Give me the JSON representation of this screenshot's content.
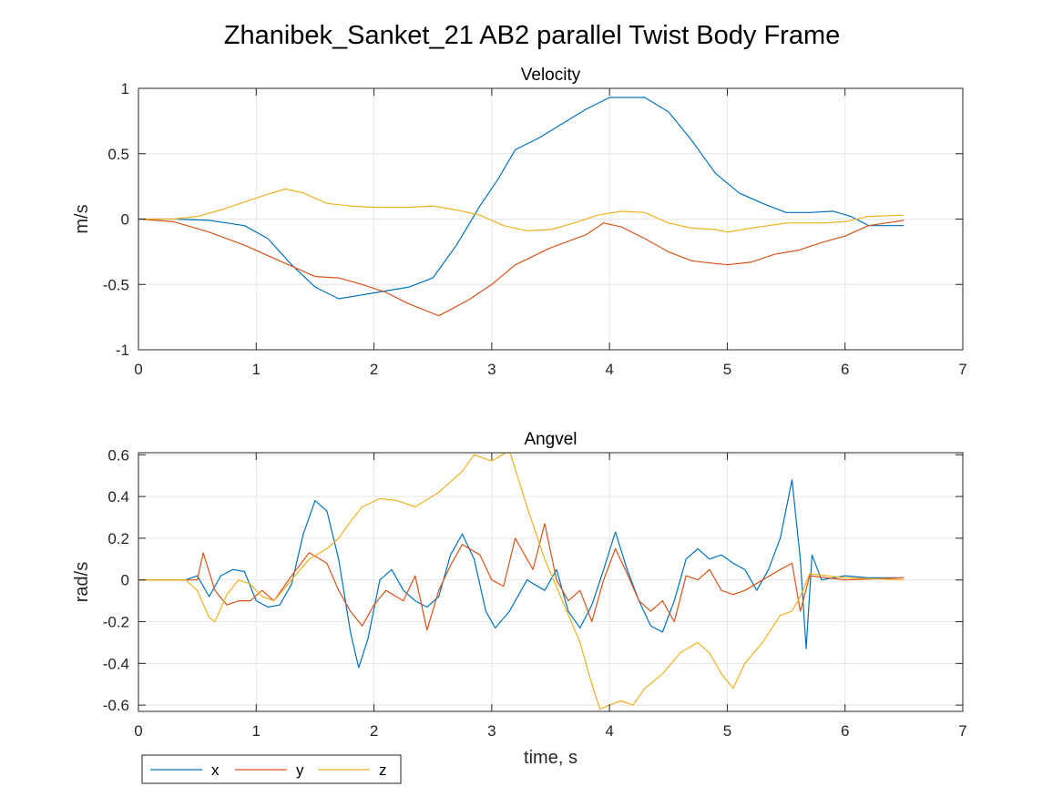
{
  "figure_title": "Zhanibek_Sanket_21 AB2 parallel Twist Body Frame",
  "colors": {
    "x": "#0072BD",
    "y": "#D95319",
    "z": "#EDB120",
    "grid": "#e6e6e6",
    "axis": "#262626"
  },
  "legend": {
    "placement": "bottom-left",
    "entries": [
      "x",
      "y",
      "z"
    ]
  },
  "chart_data": [
    {
      "type": "line",
      "title": "Velocity",
      "xlabel": "",
      "ylabel": "m/s",
      "xlim": [
        0,
        7
      ],
      "ylim": [
        -1,
        1
      ],
      "xticks": [
        0,
        1,
        2,
        3,
        4,
        5,
        6,
        7
      ],
      "xtick_labels": [
        "0",
        "1",
        "2",
        "3",
        "4",
        "5",
        "6",
        "7"
      ],
      "yticks": [
        -1,
        -0.5,
        0,
        0.5,
        1
      ],
      "ytick_labels": [
        "-1",
        "-0.5",
        "0",
        "0.5",
        "1"
      ],
      "grid": true,
      "series": [
        {
          "name": "x",
          "x": [
            0,
            0.3,
            0.6,
            0.9,
            1.1,
            1.3,
            1.5,
            1.7,
            1.9,
            2.1,
            2.3,
            2.5,
            2.7,
            2.9,
            3.05,
            3.2,
            3.4,
            3.6,
            3.8,
            4.0,
            4.3,
            4.5,
            4.7,
            4.9,
            5.1,
            5.3,
            5.5,
            5.7,
            5.9,
            6.05,
            6.2,
            6.5
          ],
          "values": [
            0,
            0,
            -0.01,
            -0.05,
            -0.15,
            -0.35,
            -0.52,
            -0.61,
            -0.58,
            -0.55,
            -0.52,
            -0.45,
            -0.2,
            0.1,
            0.3,
            0.53,
            0.62,
            0.73,
            0.84,
            0.93,
            0.93,
            0.82,
            0.6,
            0.35,
            0.2,
            0.12,
            0.05,
            0.05,
            0.06,
            0.02,
            -0.05,
            -0.05
          ]
        },
        {
          "name": "y",
          "x": [
            0,
            0.3,
            0.6,
            0.9,
            1.1,
            1.3,
            1.5,
            1.7,
            1.9,
            2.1,
            2.3,
            2.55,
            2.8,
            3.0,
            3.2,
            3.5,
            3.8,
            3.95,
            4.1,
            4.3,
            4.5,
            4.7,
            4.9,
            5.0,
            5.2,
            5.4,
            5.6,
            5.8,
            6.0,
            6.2,
            6.5
          ],
          "values": [
            0,
            -0.02,
            -0.1,
            -0.2,
            -0.28,
            -0.36,
            -0.44,
            -0.45,
            -0.5,
            -0.56,
            -0.65,
            -0.74,
            -0.62,
            -0.5,
            -0.35,
            -0.22,
            -0.12,
            -0.03,
            -0.06,
            -0.15,
            -0.25,
            -0.32,
            -0.34,
            -0.35,
            -0.33,
            -0.27,
            -0.24,
            -0.18,
            -0.13,
            -0.05,
            -0.01
          ]
        },
        {
          "name": "z",
          "x": [
            0,
            0.3,
            0.5,
            0.7,
            0.9,
            1.1,
            1.25,
            1.4,
            1.6,
            1.8,
            2.0,
            2.3,
            2.5,
            2.7,
            2.9,
            3.1,
            3.3,
            3.5,
            3.7,
            3.9,
            4.1,
            4.3,
            4.5,
            4.7,
            4.9,
            5.0,
            5.2,
            5.5,
            5.8,
            6.0,
            6.2,
            6.5
          ],
          "values": [
            0,
            0,
            0.02,
            0.07,
            0.13,
            0.19,
            0.23,
            0.2,
            0.12,
            0.1,
            0.09,
            0.09,
            0.1,
            0.07,
            0.03,
            -0.05,
            -0.09,
            -0.08,
            -0.03,
            0.03,
            0.06,
            0.05,
            -0.03,
            -0.07,
            -0.08,
            -0.1,
            -0.07,
            -0.03,
            -0.03,
            -0.02,
            0.02,
            0.03
          ]
        }
      ]
    },
    {
      "type": "line",
      "title": "Angvel",
      "xlabel": "time, s",
      "ylabel": "rad/s",
      "xlim": [
        0,
        7
      ],
      "ylim": [
        -0.63,
        0.61
      ],
      "xticks": [
        0,
        1,
        2,
        3,
        4,
        5,
        6,
        7
      ],
      "xtick_labels": [
        "0",
        "1",
        "2",
        "3",
        "4",
        "5",
        "6",
        "7"
      ],
      "yticks": [
        -0.6,
        -0.4,
        -0.2,
        0,
        0.2,
        0.4,
        0.6
      ],
      "ytick_labels": [
        "-0.6",
        "-0.4",
        "-0.2",
        "0",
        "0.2",
        "0.4",
        "0.6"
      ],
      "grid": true,
      "series": [
        {
          "name": "x",
          "x": [
            0,
            0.4,
            0.5,
            0.6,
            0.7,
            0.8,
            0.9,
            1.0,
            1.1,
            1.2,
            1.3,
            1.4,
            1.5,
            1.6,
            1.7,
            1.8,
            1.87,
            1.95,
            2.05,
            2.15,
            2.25,
            2.35,
            2.45,
            2.55,
            2.65,
            2.75,
            2.85,
            2.95,
            3.03,
            3.15,
            3.3,
            3.45,
            3.55,
            3.65,
            3.75,
            3.85,
            3.95,
            4.05,
            4.15,
            4.25,
            4.35,
            4.45,
            4.55,
            4.65,
            4.75,
            4.85,
            4.95,
            5.05,
            5.15,
            5.25,
            5.35,
            5.45,
            5.55,
            5.62,
            5.67,
            5.72,
            5.8,
            6.0,
            6.2,
            6.5
          ],
          "values": [
            0,
            0,
            0.02,
            -0.08,
            0.02,
            0.05,
            0.04,
            -0.1,
            -0.13,
            -0.12,
            -0.02,
            0.22,
            0.38,
            0.33,
            0.1,
            -0.25,
            -0.42,
            -0.28,
            0,
            0.05,
            -0.05,
            -0.1,
            -0.13,
            -0.08,
            0.12,
            0.22,
            0.1,
            -0.15,
            -0.23,
            -0.15,
            0,
            -0.05,
            0.05,
            -0.15,
            -0.23,
            -0.12,
            0.05,
            0.23,
            0.05,
            -0.1,
            -0.22,
            -0.25,
            -0.1,
            0.1,
            0.15,
            0.1,
            0.12,
            0.08,
            0.05,
            -0.05,
            0.05,
            0.2,
            0.48,
            0.1,
            -0.33,
            0.12,
            0,
            0.02,
            0.01,
            0.01
          ]
        },
        {
          "name": "y",
          "x": [
            0,
            0.4,
            0.5,
            0.55,
            0.65,
            0.75,
            0.85,
            0.95,
            1.05,
            1.15,
            1.3,
            1.45,
            1.6,
            1.7,
            1.8,
            1.9,
            2.0,
            2.1,
            2.25,
            2.35,
            2.45,
            2.55,
            2.65,
            2.75,
            2.9,
            3.0,
            3.1,
            3.2,
            3.35,
            3.45,
            3.55,
            3.65,
            3.75,
            3.85,
            3.95,
            4.05,
            4.15,
            4.25,
            4.35,
            4.45,
            4.55,
            4.65,
            4.75,
            4.85,
            4.95,
            5.05,
            5.15,
            5.3,
            5.45,
            5.55,
            5.62,
            5.7,
            6.0,
            6.5
          ],
          "values": [
            0,
            0,
            0,
            0.13,
            -0.05,
            -0.12,
            -0.1,
            -0.1,
            -0.05,
            -0.1,
            0.02,
            0.13,
            0.08,
            -0.05,
            -0.15,
            -0.22,
            -0.12,
            -0.05,
            -0.1,
            0.02,
            -0.24,
            -0.05,
            0.07,
            0.17,
            0.12,
            0,
            -0.03,
            0.2,
            0.05,
            0.27,
            0,
            -0.1,
            -0.05,
            -0.2,
            0,
            0.15,
            0.03,
            -0.1,
            -0.15,
            -0.1,
            -0.2,
            0.02,
            0,
            0.05,
            -0.05,
            -0.07,
            -0.05,
            0,
            0.05,
            0.08,
            -0.15,
            0.02,
            0,
            0.01
          ]
        },
        {
          "name": "z",
          "x": [
            0,
            0.4,
            0.5,
            0.6,
            0.65,
            0.75,
            0.85,
            0.95,
            1.05,
            1.15,
            1.3,
            1.45,
            1.6,
            1.7,
            1.8,
            1.9,
            2.05,
            2.2,
            2.35,
            2.55,
            2.75,
            2.85,
            3.0,
            3.15,
            3.3,
            3.45,
            3.6,
            3.75,
            3.85,
            3.92,
            4.0,
            4.1,
            4.2,
            4.3,
            4.45,
            4.6,
            4.75,
            4.85,
            4.95,
            5.05,
            5.15,
            5.3,
            5.45,
            5.55,
            5.62,
            5.7,
            6.0,
            6.5
          ],
          "values": [
            0,
            0,
            -0.05,
            -0.18,
            -0.2,
            -0.07,
            0,
            -0.02,
            -0.08,
            -0.1,
            0,
            0.1,
            0.15,
            0.2,
            0.28,
            0.35,
            0.39,
            0.38,
            0.35,
            0.42,
            0.52,
            0.6,
            0.57,
            0.62,
            0.35,
            0.1,
            -0.1,
            -0.3,
            -0.5,
            -0.62,
            -0.6,
            -0.58,
            -0.6,
            -0.52,
            -0.45,
            -0.35,
            -0.3,
            -0.35,
            -0.45,
            -0.52,
            -0.4,
            -0.3,
            -0.17,
            -0.15,
            -0.08,
            0.03,
            0.01,
            0
          ]
        }
      ]
    }
  ]
}
